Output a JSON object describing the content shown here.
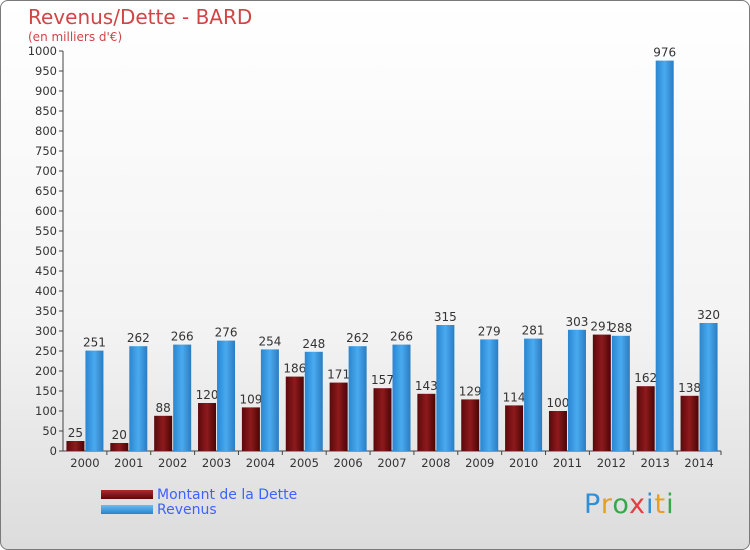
{
  "chart_data": {
    "type": "bar",
    "title": "Revenus/Dette - BARD",
    "subtitle": "(en milliers d'€)",
    "categories": [
      "2000",
      "2001",
      "2002",
      "2003",
      "2004",
      "2005",
      "2006",
      "2007",
      "2008",
      "2009",
      "2010",
      "2011",
      "2012",
      "2013",
      "2014"
    ],
    "series": [
      {
        "name": "Montant de la Dette",
        "color": "#7a0f12",
        "values": [
          25,
          20,
          88,
          120,
          109,
          186,
          171,
          157,
          143,
          129,
          114,
          100,
          291,
          162,
          138
        ]
      },
      {
        "name": "Revenus",
        "color": "#3a9be0",
        "values": [
          251,
          262,
          266,
          276,
          254,
          248,
          262,
          266,
          315,
          279,
          281,
          303,
          288,
          976,
          320
        ]
      }
    ],
    "ylim": [
      0,
      1000
    ],
    "ytick_step": 50,
    "grid": false,
    "legend_position": "bottom-left"
  },
  "logo": {
    "text": "Proxiti",
    "letters": [
      "P",
      "r",
      "o",
      "x",
      "i",
      "t",
      "i"
    ]
  }
}
